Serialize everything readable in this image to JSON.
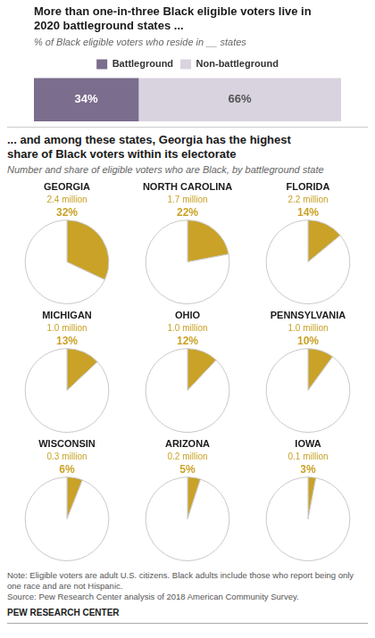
{
  "chart_data": [
    {
      "type": "bar",
      "orientation": "horizontal",
      "stacked": true,
      "title": [
        "More than one-in-three Black eligible voters live in",
        "2020 battleground states ..."
      ],
      "subtitle": "% of Black eligible voters who reside in __ states",
      "categories": [
        null
      ],
      "series": [
        {
          "name": "Battleground",
          "color": "#7b6d8d",
          "values": [
            34
          ],
          "value_labels": [
            "34%"
          ]
        },
        {
          "name": "Non-battleground",
          "color": "#d9d3df",
          "values": [
            66
          ],
          "value_labels": [
            "66%"
          ]
        }
      ],
      "xlim": [
        0,
        100
      ],
      "data_labels": true,
      "tick_labels": false,
      "grid": false,
      "legend": "top"
    },
    {
      "type": "pie",
      "title": "GEORGIA",
      "subtitle": "2.4 million",
      "values": [
        32,
        68
      ],
      "value_labels": [
        "32%",
        null
      ],
      "colors": [
        "#c9a227",
        "#ffffff"
      ],
      "data_labels": true
    },
    {
      "type": "pie",
      "title": "NORTH CAROLINA",
      "subtitle": "1.7 million",
      "values": [
        22,
        78
      ],
      "value_labels": [
        "22%",
        null
      ],
      "colors": [
        "#c9a227",
        "#ffffff"
      ],
      "data_labels": true
    },
    {
      "type": "pie",
      "title": "FLORIDA",
      "subtitle": "2.2 million",
      "values": [
        14,
        86
      ],
      "value_labels": [
        "14%",
        null
      ],
      "colors": [
        "#c9a227",
        "#ffffff"
      ],
      "data_labels": true
    },
    {
      "type": "pie",
      "title": "MICHIGAN",
      "subtitle": "1.0 million",
      "values": [
        13,
        87
      ],
      "value_labels": [
        "13%",
        null
      ],
      "colors": [
        "#c9a227",
        "#ffffff"
      ],
      "data_labels": true
    },
    {
      "type": "pie",
      "title": "OHIO",
      "subtitle": "1.0 million",
      "values": [
        12,
        88
      ],
      "value_labels": [
        "12%",
        null
      ],
      "colors": [
        "#c9a227",
        "#ffffff"
      ],
      "data_labels": true
    },
    {
      "type": "pie",
      "title": "PENNSYLVANIA",
      "subtitle": "1.0 million",
      "values": [
        10,
        90
      ],
      "value_labels": [
        "10%",
        null
      ],
      "colors": [
        "#c9a227",
        "#ffffff"
      ],
      "data_labels": true
    },
    {
      "type": "pie",
      "title": "WISCONSIN",
      "subtitle": "0.3 million",
      "values": [
        6,
        94
      ],
      "value_labels": [
        "6%",
        null
      ],
      "colors": [
        "#c9a227",
        "#ffffff"
      ],
      "data_labels": true
    },
    {
      "type": "pie",
      "title": "ARIZONA",
      "subtitle": "0.2 million",
      "values": [
        5,
        95
      ],
      "value_labels": [
        "5%",
        null
      ],
      "colors": [
        "#c9a227",
        "#ffffff"
      ],
      "data_labels": true
    },
    {
      "type": "pie",
      "title": "IOWA",
      "subtitle": "0.1 million",
      "values": [
        3,
        97
      ],
      "value_labels": [
        "3%",
        null
      ],
      "colors": [
        "#c9a227",
        "#ffffff"
      ],
      "data_labels": true
    }
  ],
  "section_title": [
    "... and among these states, Georgia has the highest",
    "share of Black voters within its electorate"
  ],
  "section_subtitle": "Number and share of eligible voters who are Black, by battleground state",
  "notes": [
    "Note: Eligible voters are adult U.S. citizens. Black adults include those who report being only",
    "one race and are not Hispanic.",
    "Source: Pew Research Center analysis of 2018 American Community Survey."
  ],
  "footer": "PEW RESEARCH CENTER"
}
